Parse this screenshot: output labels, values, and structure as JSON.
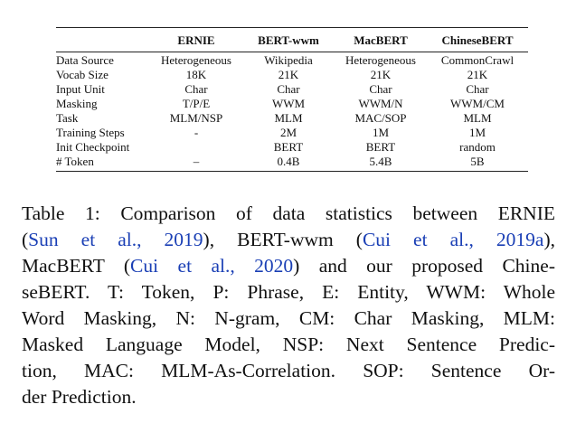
{
  "table": {
    "headers": [
      "",
      "ERNIE",
      "BERT-wwm",
      "MacBERT",
      "ChineseBERT"
    ],
    "rows": [
      [
        "Data Source",
        "Heterogeneous",
        "Wikipedia",
        "Heterogeneous",
        "CommonCrawl"
      ],
      [
        "Vocab Size",
        "18K",
        "21K",
        "21K",
        "21K"
      ],
      [
        "Input Unit",
        "Char",
        "Char",
        "Char",
        "Char"
      ],
      [
        "Masking",
        "T/P/E",
        "WWM",
        "WWM/N",
        "WWM/CM"
      ],
      [
        "Task",
        "MLM/NSP",
        "MLM",
        "MAC/SOP",
        "MLM"
      ],
      [
        "Training Steps",
        "-",
        "2M",
        "1M",
        "1M"
      ],
      [
        "Init Checkpoint",
        "",
        "BERT",
        "BERT",
        "random"
      ],
      [
        "# Token",
        "–",
        "0.4B",
        "5.4B",
        "5B"
      ]
    ]
  },
  "caption": {
    "l1_a": "Table 1: Comparison of data statistics between ERNIE",
    "l2_open": "(",
    "l2_cite1": "Sun et al., 2019",
    "l2_mid": "), BERT-wwm (",
    "l2_cite2": "Cui et al., 2019a",
    "l2_close": "),",
    "l3_a": "MacBERT (",
    "l3_cite": "Cui et al., 2020",
    "l3_b": ") and our proposed Chine-",
    "l4": "seBERT. T: Token, P: Phrase, E: Entity, WWM: Whole",
    "l5": "Word Masking, N: N-gram, CM: Char Masking, MLM:",
    "l6": "Masked Language Model, NSP: Next Sentence Predic-",
    "l7": "tion, MAC: MLM-As-Correlation. SOP: Sentence Or-",
    "l8": "der Prediction."
  },
  "colors": {
    "citation": "#1a3fb5",
    "text": "#111111"
  }
}
